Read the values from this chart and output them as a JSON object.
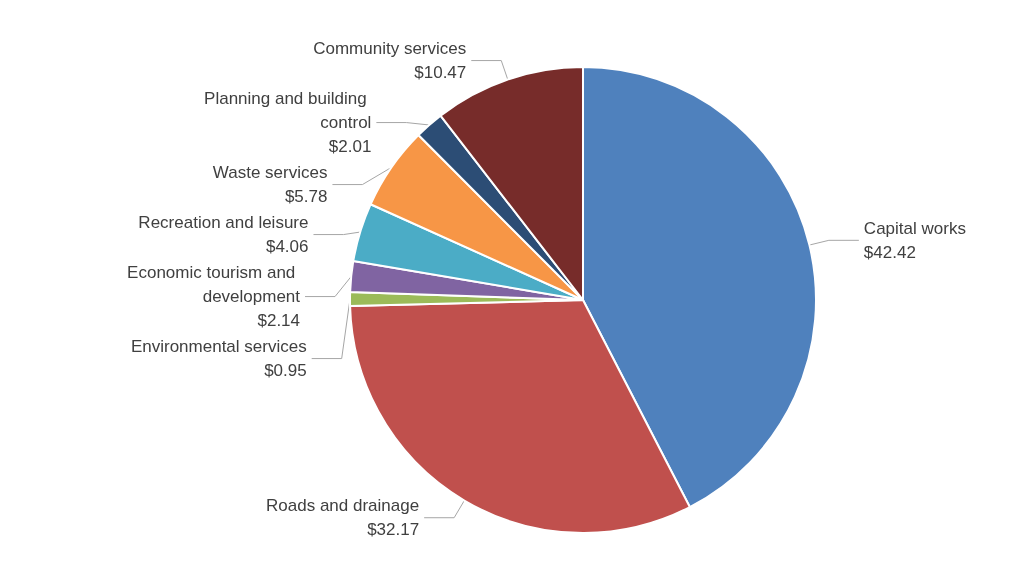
{
  "chart_data": {
    "type": "pie",
    "categories": [
      "Capital works",
      "Roads and drainage",
      "Environmental services",
      "Economic tourism and development",
      "Recreation and leisure",
      "Waste services",
      "Planning and building control",
      "Community services"
    ],
    "values": [
      42.42,
      32.17,
      0.95,
      2.14,
      4.06,
      5.78,
      2.01,
      10.47
    ],
    "value_labels": [
      "$42.42",
      "$32.17",
      "$0.95",
      "$2.14",
      "$4.06",
      "$5.78",
      "$2.01",
      "$10.47"
    ],
    "colors": [
      "#4f81bd",
      "#c0504d",
      "#9bbb59",
      "#8064a2",
      "#4bacc6",
      "#f79646",
      "#2c4d75",
      "#772c2a"
    ],
    "legend": false
  }
}
